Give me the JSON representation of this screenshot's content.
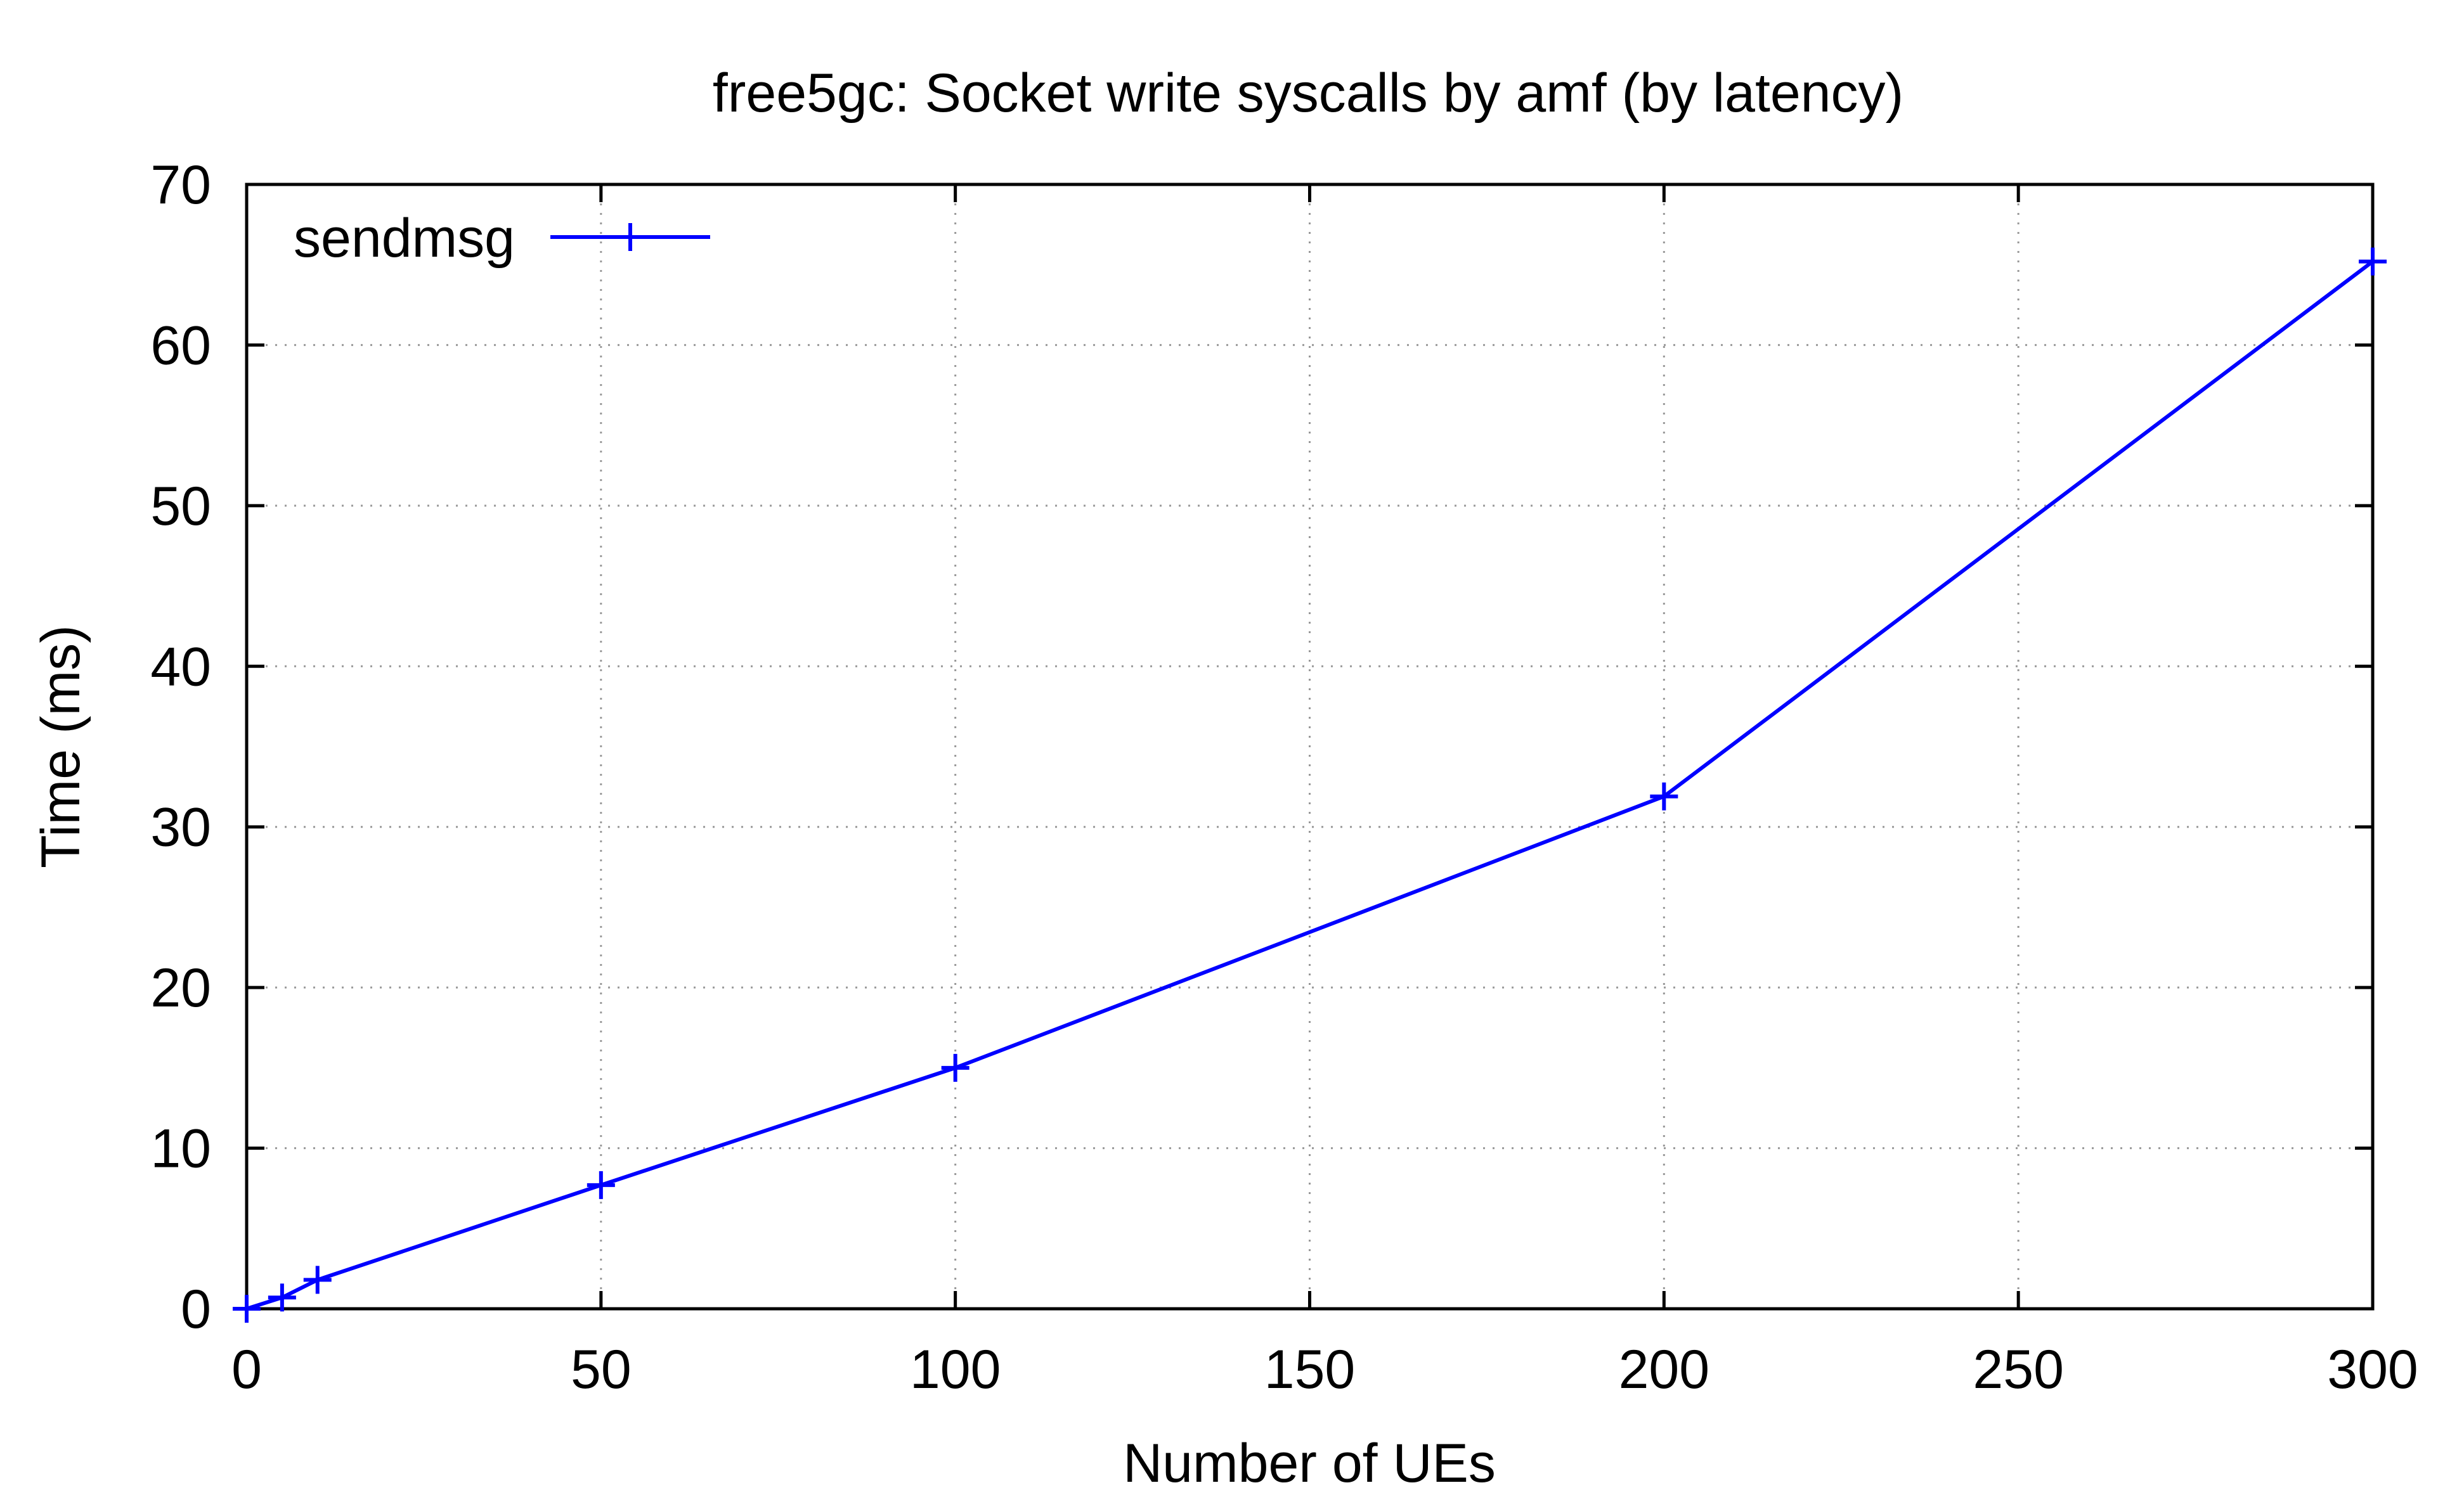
{
  "chart_data": {
    "type": "line",
    "title": "free5gc: Socket write syscalls by amf (by latency)",
    "xlabel": "Number of UEs",
    "ylabel": "Time (ms)",
    "xlim": [
      0,
      300
    ],
    "ylim": [
      0,
      70
    ],
    "xticks": [
      0,
      50,
      100,
      150,
      200,
      250,
      300
    ],
    "yticks": [
      0,
      10,
      20,
      30,
      40,
      50,
      60,
      70
    ],
    "grid": true,
    "legend_position": "top-left",
    "series": [
      {
        "name": "sendmsg",
        "color": "#0000ff",
        "marker": "plus",
        "x": [
          0,
          5,
          10,
          50,
          100,
          200,
          300
        ],
        "y": [
          0,
          0.7,
          1.8,
          7.7,
          15.0,
          31.9,
          65.2
        ]
      }
    ]
  }
}
